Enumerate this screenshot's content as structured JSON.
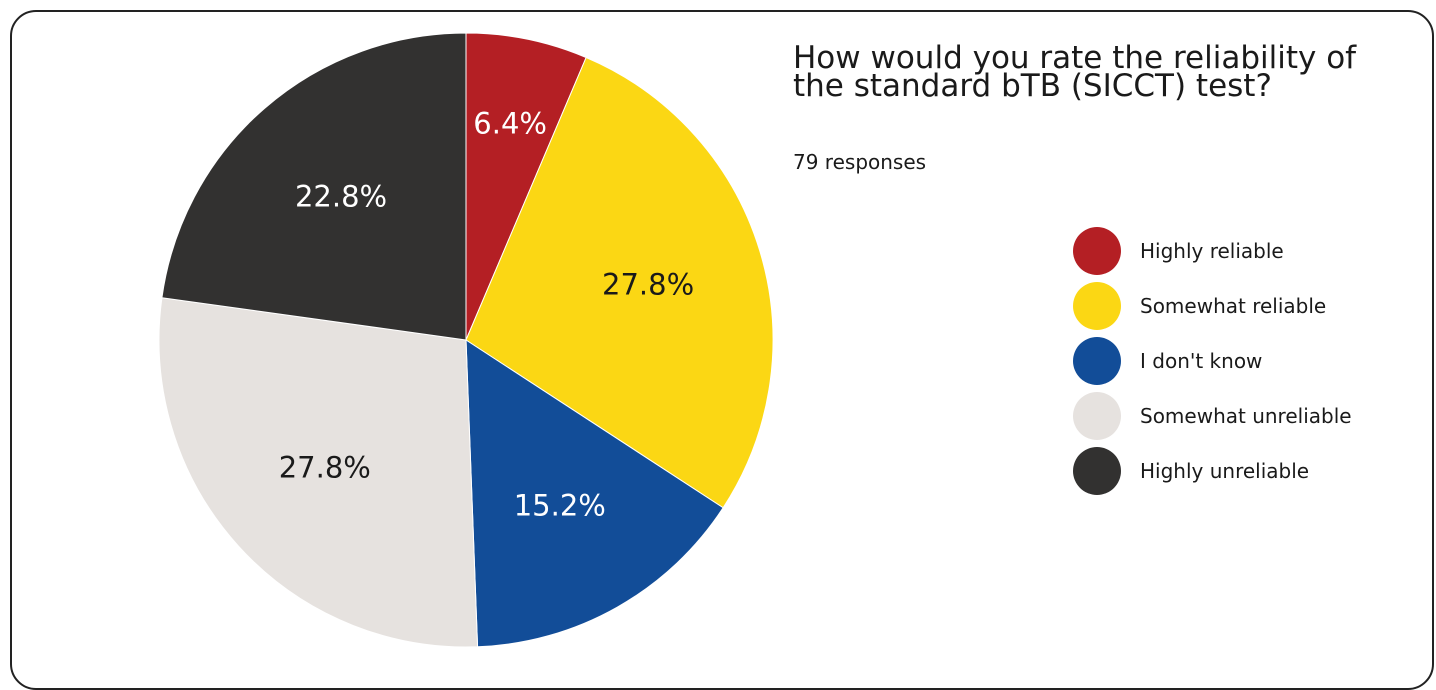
{
  "chart_data": {
    "type": "pie",
    "title": "How would you rate the reliability of the standard bTB (SICCT) test?",
    "subtitle": "79 responses",
    "legend_position": "right",
    "categories": [
      "Highly reliable",
      "Somewhat reliable",
      "I don't know",
      "Somewhat unreliable",
      "Highly unreliable"
    ],
    "values": [
      6.4,
      27.8,
      15.2,
      27.8,
      22.8
    ],
    "labels": [
      "6.4%",
      "27.8%",
      "15.2%",
      "27.8%",
      "22.8%"
    ],
    "colors": [
      "#B41F24",
      "#FBD714",
      "#124D98",
      "#E6E2DF",
      "#323130"
    ],
    "label_colors": [
      "#ffffff",
      "#1a1a1a",
      "#ffffff",
      "#1a1a1a",
      "#ffffff"
    ]
  }
}
